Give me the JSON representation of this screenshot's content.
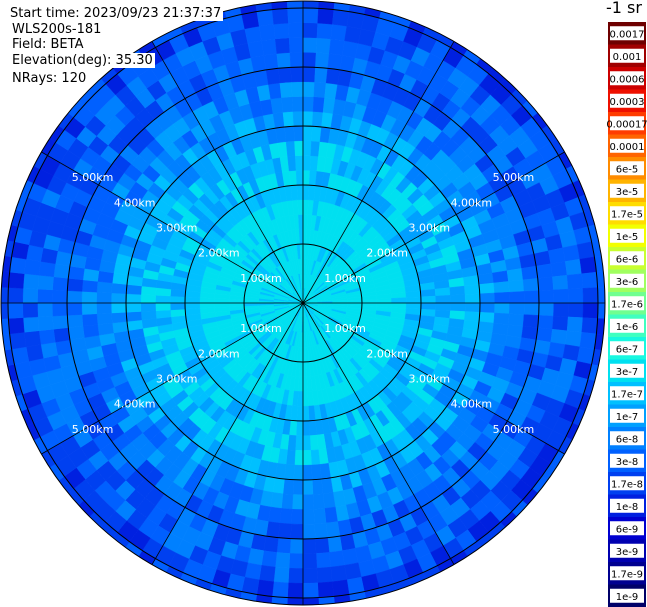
{
  "header": {
    "start_time": "Start time: 2023/09/23 21:37:37",
    "instrument": "WLS200s-181",
    "field": "Field: BETA",
    "elevation": "Elevation(deg): 35.30",
    "nrays": "NRays: 120"
  },
  "colorbar": {
    "units_label": "-1 sr",
    "labels": [
      "0.0017",
      "0.001",
      "0.0006",
      "0.0003",
      "0.00017",
      "0.0001",
      "6e-5",
      "3e-5",
      "1.7e-5",
      "1e-5",
      "6e-6",
      "3e-6",
      "1.7e-6",
      "1e-6",
      "6e-7",
      "3e-7",
      "1.7e-7",
      "1e-7",
      "6e-8",
      "3e-8",
      "1.7e-8",
      "1e-8",
      "6e-9",
      "3e-9",
      "1.7e-9",
      "1e-9"
    ],
    "colors": [
      "#6e0000",
      "#a00000",
      "#cc0000",
      "#ee1000",
      "#ff3c00",
      "#ff6400",
      "#ff8c00",
      "#ffb400",
      "#ffdc00",
      "#f2ff00",
      "#c8ff30",
      "#a0ff60",
      "#70ff90",
      "#40ffc0",
      "#18f8e0",
      "#00e0f0",
      "#00c0ff",
      "#00a0ff",
      "#0080ff",
      "#0060ff",
      "#0040f0",
      "#0020e0",
      "#0000d0",
      "#0000b0",
      "#000090",
      "#000068"
    ]
  },
  "chart_data": {
    "type": "heatmap",
    "projection": "polar (PPI)",
    "field": "BETA",
    "elevation_deg": 35.3,
    "n_rays": 120,
    "ring_labels": [
      "1.00km",
      "2.00km",
      "3.00km",
      "4.00km",
      "5.00km"
    ],
    "spoke_angles_deg": [
      0,
      30,
      60,
      90,
      120,
      150,
      180,
      210,
      240,
      270,
      300,
      330
    ],
    "radial_profile": [
      {
        "range_km": 0.5,
        "beta": "3e-7"
      },
      {
        "range_km": 1.0,
        "beta": "3e-7"
      },
      {
        "range_km": 1.5,
        "beta": "3e-7"
      },
      {
        "range_km": 2.0,
        "beta": "1.7e-7"
      },
      {
        "range_km": 2.5,
        "beta": "1.7e-7"
      },
      {
        "range_km": 3.0,
        "beta": "1e-7"
      },
      {
        "range_km": 3.5,
        "beta": "6e-8"
      },
      {
        "range_km": 4.0,
        "beta": "3e-8"
      },
      {
        "range_km": 4.5,
        "beta": "3e-8"
      },
      {
        "range_km": 5.0,
        "beta": "1.7e-8"
      },
      {
        "range_km": 5.5,
        "beta": "1.7e-8"
      }
    ]
  }
}
